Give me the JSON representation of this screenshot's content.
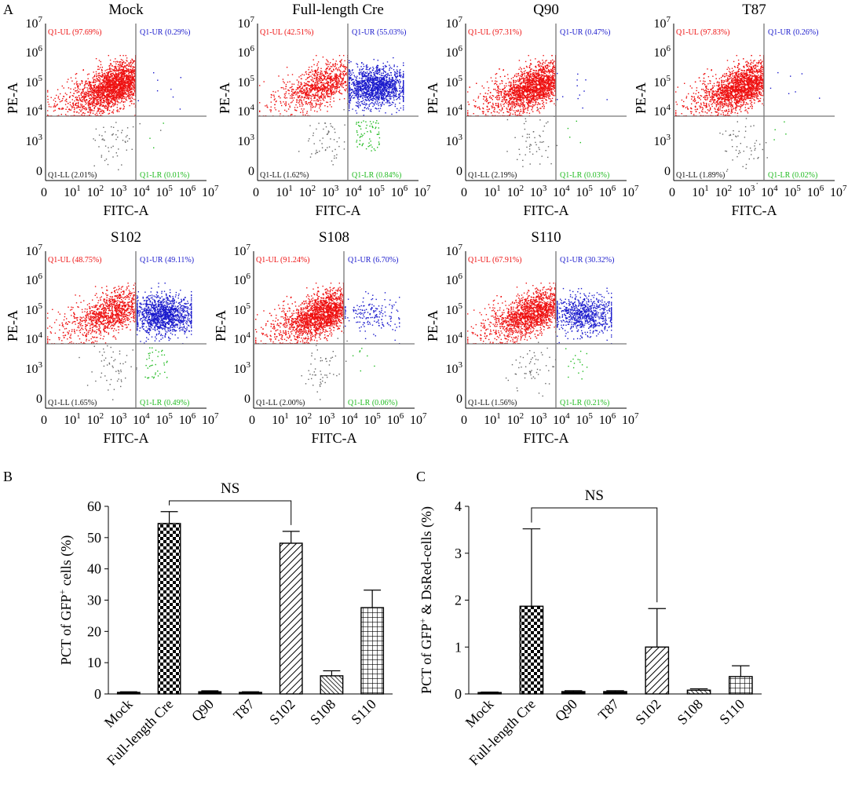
{
  "panel_labels": {
    "a": "A",
    "b": "B",
    "c": "C"
  },
  "colors": {
    "UL": "#ee1111",
    "UR": "#1a1acc",
    "LL": "#111111",
    "LR": "#22bb22",
    "axis": "#000000",
    "gate": "#777777",
    "dots_ll": "#666666"
  },
  "chart_data": [
    {
      "type": "scatter",
      "subtype": "flow-cytometry-quadrant",
      "xlabel": "FITC-A",
      "ylabel": "PE-A",
      "x_ticks": [
        {
          "base": "0",
          "exp": ""
        },
        {
          "base": "10",
          "exp": "1"
        },
        {
          "base": "10",
          "exp": "2"
        },
        {
          "base": "10",
          "exp": "3"
        },
        {
          "base": "10",
          "exp": "4"
        },
        {
          "base": "10",
          "exp": "5"
        },
        {
          "base": "10",
          "exp": "6"
        },
        {
          "base": "10",
          "exp": "7"
        }
      ],
      "y_ticks": [
        {
          "base": "0",
          "exp": ""
        },
        {
          "base": "10",
          "exp": "3"
        },
        {
          "base": "10",
          "exp": "4"
        },
        {
          "base": "10",
          "exp": "5"
        },
        {
          "base": "10",
          "exp": "6"
        },
        {
          "base": "10",
          "exp": "7"
        }
      ],
      "plots": [
        {
          "title": "Mock",
          "quadrants": {
            "UL": "Q1-UL (97.69%)",
            "UR": "Q1-UR (0.29%)",
            "LL": "Q1-LL (2.01%)",
            "LR": "Q1-LR (0.01%)"
          },
          "ur_fraction": 0.0029,
          "lr_fraction": 0.0001
        },
        {
          "title": "Full-length Cre",
          "quadrants": {
            "UL": "Q1-UL (42.51%)",
            "UR": "Q1-UR (55.03%)",
            "LL": "Q1-LL (1.62%)",
            "LR": "Q1-LR (0.84%)"
          },
          "ur_fraction": 0.5503,
          "lr_fraction": 0.0084
        },
        {
          "title": "Q90",
          "quadrants": {
            "UL": "Q1-UL (97.31%)",
            "UR": "Q1-UR (0.47%)",
            "LL": "Q1-LL (2.19%)",
            "LR": "Q1-LR (0.03%)"
          },
          "ur_fraction": 0.0047,
          "lr_fraction": 0.0003
        },
        {
          "title": "T87",
          "quadrants": {
            "UL": "Q1-UL (97.83%)",
            "UR": "Q1-UR (0.26%)",
            "LL": "Q1-LL (1.89%)",
            "LR": "Q1-LR (0.02%)"
          },
          "ur_fraction": 0.0026,
          "lr_fraction": 0.0002
        },
        {
          "title": "S102",
          "quadrants": {
            "UL": "Q1-UL (48.75%)",
            "UR": "Q1-UR (49.11%)",
            "LL": "Q1-LL (1.65%)",
            "LR": "Q1-LR (0.49%)"
          },
          "ur_fraction": 0.4911,
          "lr_fraction": 0.0049
        },
        {
          "title": "S108",
          "quadrants": {
            "UL": "Q1-UL (91.24%)",
            "UR": "Q1-UR (6.70%)",
            "LL": "Q1-LL (2.00%)",
            "LR": "Q1-LR (0.06%)"
          },
          "ur_fraction": 0.067,
          "lr_fraction": 0.0006
        },
        {
          "title": "S110",
          "quadrants": {
            "UL": "Q1-UL (67.91%)",
            "UR": "Q1-UR (30.32%)",
            "LL": "Q1-LL (1.56%)",
            "LR": "Q1-LR (0.21%)"
          },
          "ur_fraction": 0.3032,
          "lr_fraction": 0.0021
        }
      ]
    },
    {
      "type": "bar",
      "categories": [
        "Mock",
        "Full-length Cre",
        "Q90",
        "T87",
        "S102",
        "S108",
        "S110"
      ],
      "values": [
        0.5,
        54.5,
        0.7,
        0.5,
        48.2,
        5.8,
        27.6
      ],
      "errors": [
        0.2,
        3.8,
        0.3,
        0.2,
        3.8,
        1.6,
        5.6
      ],
      "patterns": [
        "solid",
        "checker",
        "solid",
        "solid",
        "diagonal",
        "diagonal-dense",
        "grid"
      ],
      "ylabel": "PCT of GFP",
      "ylabel_sup": "+",
      "ylabel_tail": " cells (%)",
      "ylim": [
        0,
        60
      ],
      "yticks": [
        0,
        10,
        20,
        30,
        40,
        50,
        60
      ],
      "annotation": {
        "text": "NS",
        "from": 1,
        "to": 4
      }
    },
    {
      "type": "bar",
      "categories": [
        "Mock",
        "Full-length Cre",
        "Q90",
        "T87",
        "S102",
        "S108",
        "S110"
      ],
      "values": [
        0.03,
        1.87,
        0.05,
        0.05,
        1.0,
        0.08,
        0.37
      ],
      "errors": [
        0.01,
        1.65,
        0.02,
        0.02,
        0.82,
        0.03,
        0.23
      ],
      "patterns": [
        "solid",
        "checker",
        "solid",
        "solid",
        "diagonal",
        "diagonal-dense",
        "grid"
      ],
      "ylabel": "PCT of GFP",
      "ylabel_sup": "+",
      "ylabel_tail": " & DsRed-cells (%)",
      "ylim": [
        0,
        4
      ],
      "yticks": [
        0,
        1,
        2,
        3,
        4
      ],
      "annotation": {
        "text": "NS",
        "from": 1,
        "to": 4
      }
    }
  ]
}
